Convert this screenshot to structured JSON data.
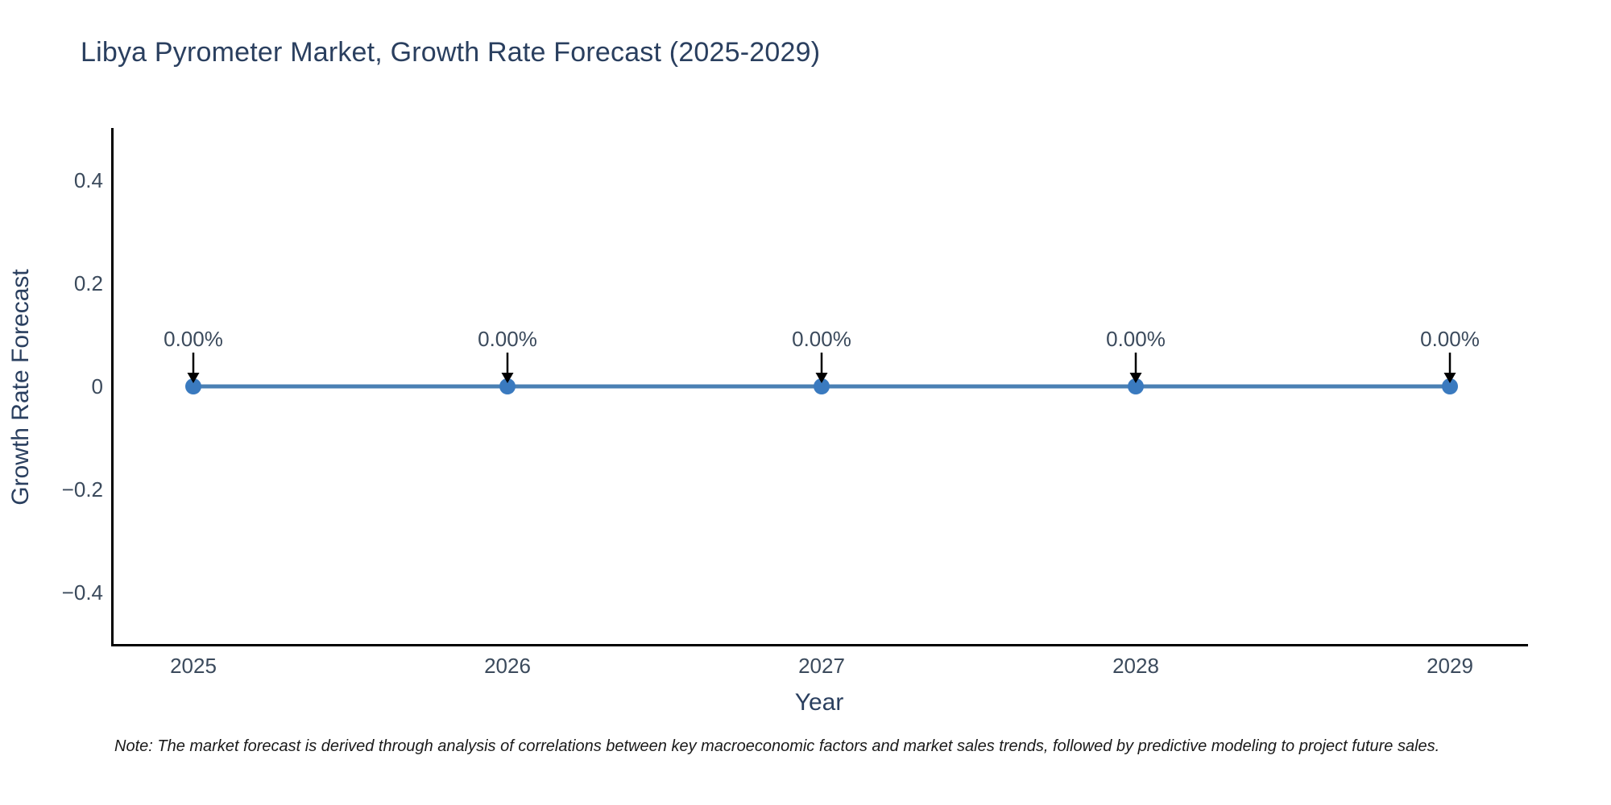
{
  "chart_data": {
    "type": "line",
    "title": "Libya Pyrometer Market, Growth Rate Forecast (2025-2029)",
    "xlabel": "Year",
    "ylabel": "Growth Rate Forecast",
    "x": [
      2025,
      2026,
      2027,
      2028,
      2029
    ],
    "xtick_labels": [
      "2025",
      "2026",
      "2027",
      "2028",
      "2029"
    ],
    "series": [
      {
        "name": "Growth Rate Forecast",
        "values": [
          0,
          0,
          0,
          0,
          0
        ],
        "point_labels": [
          "0.00%",
          "0.00%",
          "0.00%",
          "0.00%",
          "0.00%"
        ]
      }
    ],
    "ylim": [
      -0.5,
      0.5
    ],
    "yticks": [
      0.4,
      0.2,
      0,
      -0.2,
      -0.4
    ],
    "ytick_labels": [
      "0.4",
      "0.2",
      "0",
      "−0.2",
      "−0.4"
    ],
    "grid": false,
    "legend_visible": false,
    "annotations_have_arrows": true,
    "colors": {
      "line": "#4a80b4",
      "marker": "#3a7abf",
      "axis": "#000000",
      "title_text": "#2a3f5f",
      "axis_title_text": "#2a3f5f",
      "tick_text": "#3b4a5c",
      "annotation_text": "#3b4a5c",
      "arrow": "#000000",
      "note_text": "#1a1a1a"
    },
    "note": "Note: The market forecast is derived through analysis of correlations between key macroeconomic factors and market sales trends, followed by predictive modeling to project future sales."
  }
}
